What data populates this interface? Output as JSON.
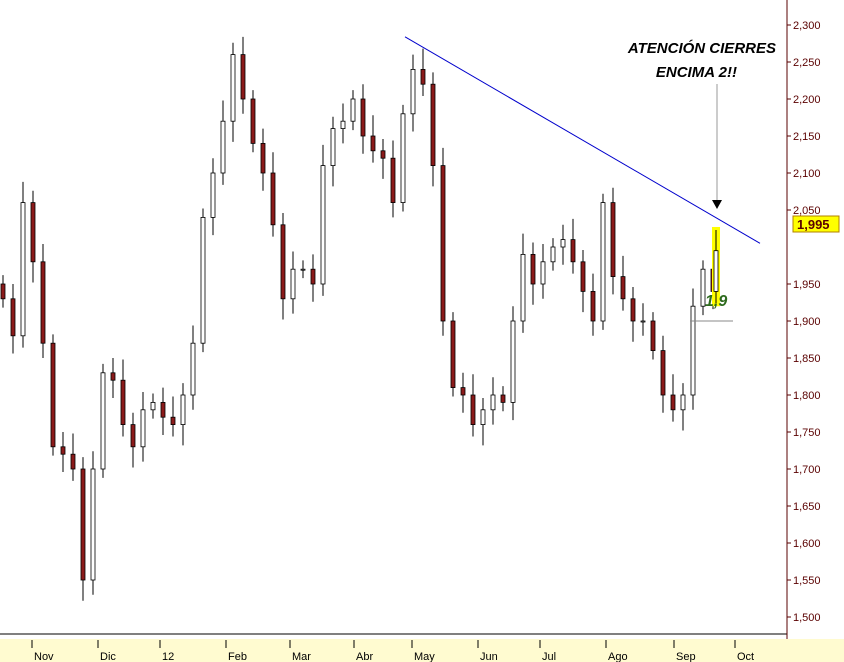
{
  "chart_data": {
    "type": "candlestick",
    "title": "",
    "xlabel": "",
    "ylabel": "",
    "ylim": [
      1.5,
      2.3
    ],
    "y_ticks": [
      "2,300",
      "2,250",
      "2,200",
      "2,150",
      "2,100",
      "2,050",
      "1,950",
      "1,900",
      "1,850",
      "1,800",
      "1,750",
      "1,700",
      "1,650",
      "1,600",
      "1,550",
      "1,500"
    ],
    "y_tick_values": [
      2.3,
      2.25,
      2.2,
      2.15,
      2.1,
      2.05,
      1.95,
      1.9,
      1.85,
      1.8,
      1.75,
      1.7,
      1.65,
      1.6,
      1.55,
      1.5
    ],
    "x_ticks": [
      "Nov",
      "Dic",
      "12",
      "Feb",
      "Mar",
      "Abr",
      "May",
      "Jun",
      "Jul",
      "Ago",
      "Sep",
      "Oct"
    ],
    "closes": [
      1.93,
      1.88,
      2.06,
      1.98,
      1.87,
      1.73,
      1.72,
      1.7,
      1.55,
      1.7,
      1.83,
      1.82,
      1.76,
      1.73,
      1.78,
      1.79,
      1.77,
      1.76,
      1.8,
      1.87,
      2.04,
      2.1,
      2.17,
      2.26,
      2.2,
      2.14,
      2.1,
      2.03,
      1.93,
      1.97,
      1.97,
      1.95,
      2.11,
      2.16,
      2.17,
      2.2,
      2.15,
      2.13,
      2.12,
      2.06,
      2.18,
      2.24,
      2.22,
      2.11,
      1.9,
      1.81,
      1.8,
      1.76,
      1.78,
      1.8,
      1.79,
      1.9,
      1.99,
      1.95,
      1.98,
      2.0,
      2.01,
      1.98,
      1.94,
      1.9,
      2.06,
      1.96,
      1.93,
      1.9,
      1.9,
      1.86,
      1.8,
      1.78,
      1.8,
      1.92,
      1.97,
      1.94,
      1.995
    ],
    "last_price_label": "1,995",
    "trendline": {
      "from_price": 2.284,
      "to_price": 2.005,
      "color": "#0000cc"
    },
    "support": {
      "price": 1.9,
      "label": "1,9",
      "color": "#2e6b1e"
    },
    "annotation": {
      "line1": "ATENCIÓN CIERRES",
      "line2": "ENCIMA 2!!"
    },
    "colors": {
      "up": "#ffffff",
      "down": "#8b1a1a",
      "axis": "#5a0000",
      "highlight": "#ffff00",
      "axis_bg": "#fffbd0"
    }
  }
}
